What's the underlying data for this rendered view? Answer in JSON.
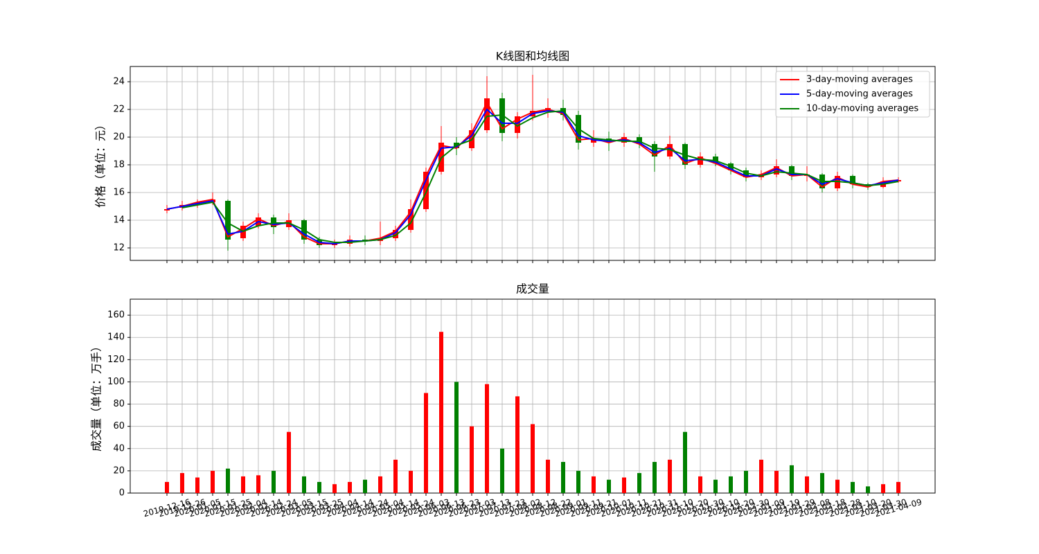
{
  "chart_data": [
    {
      "type": "candlestick",
      "title": "K线图和均线图",
      "ylabel": "价格（单位：元）",
      "open": [
        14.7,
        14.9,
        15.1,
        15.3,
        15.4,
        12.7,
        13.6,
        14.2,
        13.5,
        14.0,
        12.6,
        12.2,
        12.3,
        12.6,
        12.5,
        12.7,
        13.3,
        14.8,
        17.5,
        19.6,
        19.2,
        20.5,
        22.8,
        20.3,
        21.5,
        21.9,
        22.1,
        21.6,
        19.6,
        19.9,
        19.6,
        20.0,
        19.5,
        18.6,
        19.5,
        18.0,
        18.6,
        18.1,
        17.6,
        17.1,
        17.3,
        17.9,
        17.2,
        17.3,
        16.3,
        17.2,
        16.6,
        16.4,
        16.8
      ],
      "high": [
        15.1,
        15.4,
        15.5,
        16.0,
        15.5,
        13.9,
        14.5,
        14.4,
        14.5,
        14.1,
        12.8,
        12.6,
        12.9,
        12.9,
        13.9,
        13.6,
        15.5,
        17.8,
        20.8,
        20.0,
        21.0,
        24.4,
        23.2,
        21.8,
        24.5,
        22.8,
        22.7,
        21.9,
        20.5,
        20.4,
        20.3,
        20.2,
        19.7,
        20.1,
        19.6,
        18.9,
        18.8,
        18.2,
        17.8,
        17.6,
        18.4,
        18.0,
        17.9,
        17.4,
        17.5,
        17.3,
        16.7,
        17.1,
        17.1
      ],
      "low": [
        14.5,
        14.7,
        14.9,
        15.1,
        11.8,
        12.5,
        13.4,
        13.0,
        13.3,
        12.3,
        12.0,
        12.0,
        12.1,
        12.2,
        12.2,
        12.5,
        13.1,
        14.6,
        17.3,
        18.7,
        19.0,
        20.3,
        19.7,
        19.9,
        21.2,
        21.4,
        21.2,
        19.1,
        19.3,
        19.0,
        19.3,
        19.2,
        17.5,
        18.4,
        17.7,
        17.8,
        17.9,
        17.3,
        16.8,
        16.9,
        17.1,
        16.9,
        16.8,
        16.0,
        16.1,
        16.3,
        16.2,
        16.3,
        16.7
      ],
      "close": [
        14.8,
        15.1,
        15.3,
        15.5,
        12.6,
        13.6,
        14.2,
        13.5,
        14.0,
        12.6,
        12.2,
        12.3,
        12.6,
        12.5,
        12.7,
        13.3,
        14.8,
        17.5,
        19.6,
        19.2,
        20.5,
        22.8,
        20.3,
        21.5,
        21.9,
        22.1,
        21.6,
        19.6,
        19.9,
        19.6,
        20.0,
        19.5,
        18.6,
        19.5,
        18.0,
        18.6,
        18.1,
        17.6,
        17.1,
        17.3,
        17.9,
        17.2,
        17.3,
        16.3,
        17.2,
        16.6,
        16.4,
        16.8,
        16.9
      ],
      "up_color": "#ff0000",
      "down_color": "#008000",
      "series": [
        {
          "name": "3-day-moving averages",
          "color": "#ff0000",
          "values": [
            14.8,
            15.0,
            15.3,
            15.5,
            12.8,
            13.4,
            14.1,
            13.6,
            13.9,
            12.8,
            12.3,
            12.3,
            12.5,
            12.5,
            12.7,
            13.2,
            14.6,
            17.2,
            19.4,
            19.2,
            20.3,
            22.5,
            20.6,
            21.3,
            21.8,
            22.0,
            21.7,
            19.8,
            19.9,
            19.6,
            19.9,
            19.5,
            18.7,
            19.4,
            18.1,
            18.5,
            18.1,
            17.6,
            17.1,
            17.3,
            17.8,
            17.2,
            17.3,
            16.4,
            17.1,
            16.6,
            16.4,
            16.8,
            16.9
          ]
        },
        {
          "name": "5-day-moving averages",
          "color": "#0000ff",
          "values": [
            14.8,
            15.0,
            15.2,
            15.4,
            13.0,
            13.2,
            13.9,
            13.7,
            13.8,
            13.0,
            12.4,
            12.3,
            12.5,
            12.5,
            12.6,
            13.1,
            14.4,
            16.9,
            19.2,
            19.3,
            20.1,
            22.0,
            21.0,
            21.0,
            21.7,
            21.9,
            21.8,
            20.1,
            19.8,
            19.7,
            19.8,
            19.6,
            18.9,
            19.2,
            18.3,
            18.4,
            18.2,
            17.7,
            17.2,
            17.2,
            17.7,
            17.3,
            17.3,
            16.6,
            17.0,
            16.7,
            16.5,
            16.7,
            16.9
          ]
        },
        {
          "name": "10-day-moving averages",
          "color": "#008000",
          "values": [
            null,
            14.9,
            15.1,
            15.3,
            13.8,
            13.2,
            13.6,
            13.8,
            13.8,
            13.3,
            12.6,
            12.4,
            12.4,
            12.5,
            12.6,
            12.9,
            13.8,
            16.0,
            18.5,
            19.4,
            19.8,
            21.5,
            21.6,
            20.8,
            21.4,
            21.8,
            21.9,
            20.6,
            19.9,
            19.8,
            19.7,
            19.7,
            19.2,
            19.1,
            18.7,
            18.4,
            18.3,
            17.9,
            17.4,
            17.2,
            17.5,
            17.4,
            17.3,
            16.8,
            16.8,
            16.7,
            16.5,
            16.6,
            16.8
          ]
        }
      ],
      "ylim": [
        11.1,
        25.1
      ],
      "yticks": [
        12,
        14,
        16,
        18,
        20,
        22,
        24
      ],
      "grid": true,
      "legend": "upper right"
    },
    {
      "type": "bar",
      "title": "成交量",
      "ylabel": "成交量（单位：万手）",
      "categories": [
        "2019-12-16",
        "2019-12-26",
        "2020-01-05",
        "2020-01-15",
        "2020-01-25",
        "2020-02-04",
        "2020-02-14",
        "2020-02-24",
        "2020-03-05",
        "2020-03-15",
        "2020-03-25",
        "2020-04-04",
        "2020-04-14",
        "2020-04-24",
        "2020-05-04",
        "2020-05-14",
        "2020-05-24",
        "2020-06-03",
        "2020-06-13",
        "2020-06-23",
        "2020-07-03",
        "2020-07-13",
        "2020-07-23",
        "2020-08-02",
        "2020-08-12",
        "2020-08-22",
        "2020-09-01",
        "2020-09-11",
        "2020-09-21",
        "2020-10-01",
        "2020-10-11",
        "2020-10-21",
        "2020-10-31",
        "2020-11-10",
        "2020-11-20",
        "2020-11-30",
        "2020-12-10",
        "2020-12-20",
        "2020-12-30",
        "2021-01-09",
        "2021-01-19",
        "2021-01-29",
        "2021-02-08",
        "2021-02-18",
        "2021-02-28",
        "2021-03-10",
        "2021-03-20",
        "2021-03-30",
        "2021-04-09"
      ],
      "values": [
        10,
        18,
        14,
        20,
        22,
        15,
        16,
        20,
        55,
        15,
        10,
        8,
        10,
        12,
        15,
        30,
        20,
        90,
        145,
        100,
        60,
        98,
        40,
        87,
        62,
        30,
        28,
        20,
        15,
        12,
        14,
        18,
        28,
        30,
        55,
        15,
        12,
        15,
        20,
        30,
        20,
        25,
        15,
        18,
        12,
        10,
        6,
        8,
        10
      ],
      "ylim": [
        0,
        174.4
      ],
      "yticks": [
        0,
        20,
        40,
        60,
        80,
        100,
        120,
        140,
        160
      ],
      "grid": true
    }
  ]
}
